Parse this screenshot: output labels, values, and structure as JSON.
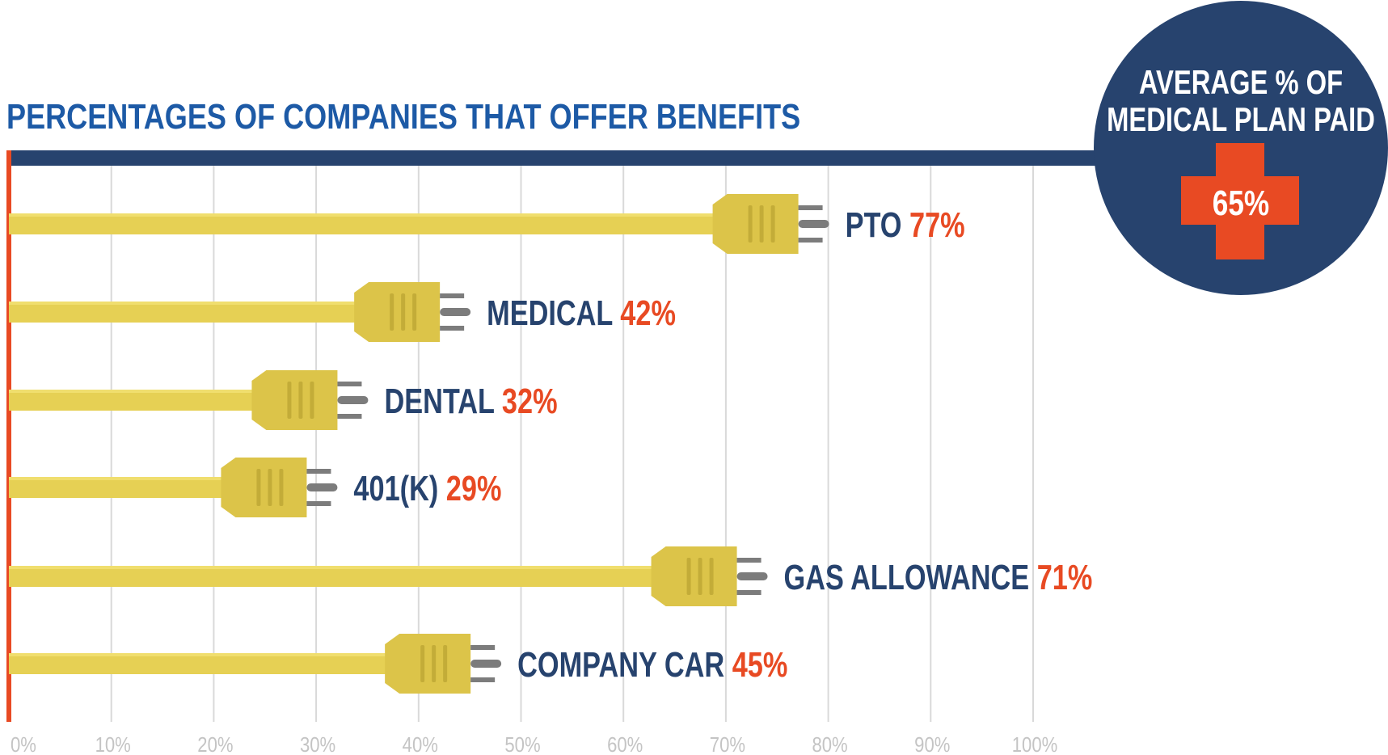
{
  "chart_data": {
    "type": "bar",
    "title": "PERCENTAGES OF COMPANIES THAT OFFER BENEFITS",
    "categories": [
      "PTO",
      "MEDICAL",
      "DENTAL",
      "401(K)",
      "GAS ALLOWANCE",
      "COMPANY CAR"
    ],
    "values": [
      77,
      42,
      32,
      29,
      71,
      45
    ],
    "value_labels": [
      "77%",
      "42%",
      "32%",
      "29%",
      "71%",
      "45%"
    ],
    "xlim": [
      0,
      100
    ],
    "x_ticks": [
      "0%",
      "10%",
      "20%",
      "30%",
      "40%",
      "50%",
      "60%",
      "70%",
      "80%",
      "90%",
      "100%"
    ],
    "grid": true,
    "orientation": "horizontal"
  },
  "callout": {
    "line1": "AVERAGE % OF",
    "line2": "MEDICAL PLAN PAID",
    "value": "65%"
  },
  "colors": {
    "navy": "#27436e",
    "blue_title": "#1d5aa6",
    "orange": "#e84a23",
    "cord": "#e6d054",
    "plug": "#dcc449",
    "plug_dark": "#b8a332",
    "prong": "#7c7c7c",
    "grid": "#d9d9d9",
    "tick": "#c4c4c4"
  }
}
